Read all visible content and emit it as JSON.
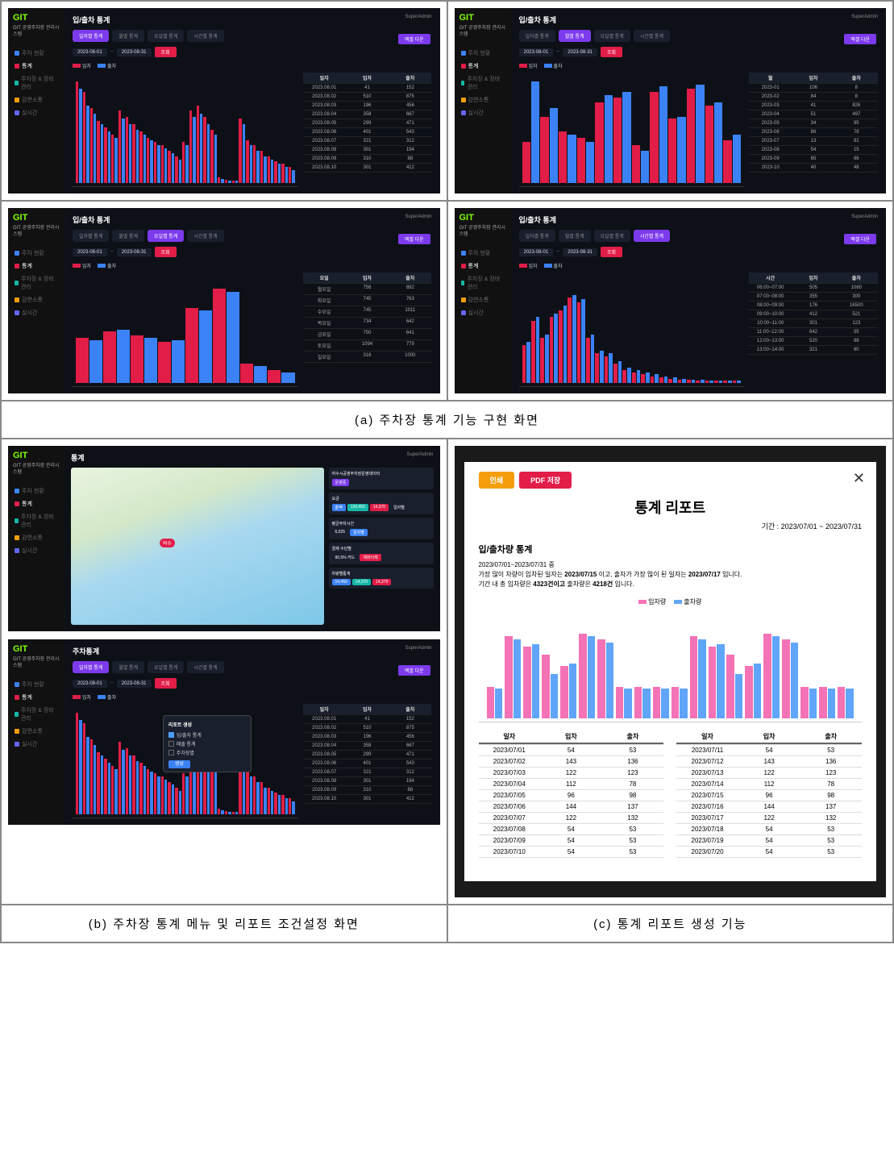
{
  "colors": {
    "bar_in": "#e11d48",
    "bar_out": "#3b82f6",
    "active_tab": "#7c3aed",
    "logo": "#7fff00",
    "bg": "#0d1117"
  },
  "logo": "GIT",
  "system_name": "GIT 공영주차장\n관리시스템",
  "nav": [
    {
      "label": "주차 현황",
      "color": "#3b82f6"
    },
    {
      "label": "통계",
      "color": "#e11d48",
      "active": true
    },
    {
      "label": "주차장 & 장비 관리",
      "color": "#14b8a6"
    },
    {
      "label": "감면소통",
      "color": "#f59e0b"
    },
    {
      "label": "실시간",
      "color": "#6366f1"
    }
  ],
  "header_user": "SuperAdmin",
  "page_title": "입/출차 통계",
  "tabs": [
    "일자별 통계",
    "월별 통계",
    "요일별 통계",
    "시간별 통계"
  ],
  "date_from": "2023-08-01",
  "date_to": "2023-08-31",
  "btn_search": "조회",
  "btn_excel": "엑셀 다운",
  "legend_in": "입차",
  "legend_out": "출차",
  "panels": {
    "a1": {
      "active_tab": 0,
      "chart": {
        "type": "bar",
        "values_in": [
          95,
          85,
          70,
          58,
          52,
          45,
          68,
          62,
          55,
          48,
          42,
          38,
          35,
          30,
          25,
          38,
          68,
          72,
          62,
          50,
          5,
          3,
          2,
          60,
          40,
          35,
          30,
          25,
          20,
          18,
          15
        ],
        "values_out": [
          88,
          72,
          65,
          55,
          48,
          42,
          60,
          55,
          50,
          45,
          40,
          35,
          32,
          28,
          22,
          35,
          62,
          65,
          55,
          45,
          4,
          2,
          2,
          55,
          35,
          30,
          25,
          22,
          18,
          15,
          12
        ]
      },
      "table": {
        "headers": [
          "일자",
          "입차",
          "출차"
        ],
        "rows": [
          [
            "2023.08.01",
            "41",
            "152"
          ],
          [
            "2023.08.02",
            "510",
            "875"
          ],
          [
            "2023.08.03",
            "196",
            "456"
          ],
          [
            "2023.08.04",
            "358",
            "667"
          ],
          [
            "2023.08.05",
            "299",
            "471"
          ],
          [
            "2023.08.06",
            "401",
            "543"
          ],
          [
            "2023.08.07",
            "321",
            "312"
          ],
          [
            "2023.08.08",
            "301",
            "194"
          ],
          [
            "2023.08.09",
            "310",
            "88"
          ],
          [
            "2023.08.10",
            "301",
            "412"
          ]
        ]
      }
    },
    "a2": {
      "active_tab": 1,
      "chart": {
        "type": "bar",
        "values_in": [
          38,
          62,
          48,
          42,
          75,
          80,
          35,
          85,
          60,
          88,
          72,
          40
        ],
        "values_out": [
          95,
          70,
          45,
          38,
          82,
          85,
          30,
          90,
          62,
          92,
          75,
          45
        ]
      },
      "table": {
        "headers": [
          "월",
          "입차",
          "출차"
        ],
        "rows": [
          [
            "2023-01",
            "106",
            "8"
          ],
          [
            "2023-02",
            "84",
            "8"
          ],
          [
            "2023-03",
            "41",
            "826"
          ],
          [
            "2023-04",
            "51",
            "497"
          ],
          [
            "2023-05",
            "34",
            "95"
          ],
          [
            "2023-06",
            "86",
            "78"
          ],
          [
            "2023-07",
            "13",
            "81"
          ],
          [
            "2023-08",
            "54",
            "15"
          ],
          [
            "2023-09",
            "65",
            "86"
          ],
          [
            "2023-10",
            "40",
            "48"
          ]
        ]
      }
    },
    "a3": {
      "active_tab": 2,
      "chart": {
        "type": "bar",
        "values_in": [
          42,
          48,
          44,
          38,
          70,
          88,
          18,
          12
        ],
        "values_out": [
          40,
          50,
          42,
          40,
          68,
          85,
          16,
          10
        ]
      },
      "table": {
        "headers": [
          "요일",
          "입차",
          "출차"
        ],
        "rows": [
          [
            "월요일",
            "756",
            "892"
          ],
          [
            "화요일",
            "745",
            "763"
          ],
          [
            "수요일",
            "745",
            "1011"
          ],
          [
            "목요일",
            "734",
            "642"
          ],
          [
            "금요일",
            "750",
            "641"
          ],
          [
            "토요일",
            "1094",
            "779"
          ],
          [
            "일요일",
            "316",
            "1000"
          ]
        ]
      }
    },
    "a4": {
      "active_tab": 3,
      "chart": {
        "type": "bar",
        "values_in": [
          35,
          58,
          42,
          62,
          68,
          80,
          75,
          42,
          28,
          25,
          18,
          12,
          10,
          8,
          6,
          5,
          4,
          3,
          3,
          2,
          2,
          2,
          2,
          2
        ],
        "values_out": [
          38,
          62,
          45,
          65,
          72,
          82,
          78,
          45,
          30,
          28,
          20,
          14,
          12,
          10,
          8,
          6,
          5,
          4,
          3,
          3,
          2,
          2,
          2,
          2
        ]
      },
      "table": {
        "headers": [
          "시간",
          "입차",
          "출차"
        ],
        "rows": [
          [
            "06:00~07:00",
            "505",
            "1060"
          ],
          [
            "07:00~08:00",
            "355",
            "300"
          ],
          [
            "08:00~09:00",
            "176",
            "16500"
          ],
          [
            "09:00~10:00",
            "412",
            "521"
          ],
          [
            "10:00~11:00",
            "301",
            "123"
          ],
          [
            "11:00~12:00",
            "642",
            "55"
          ],
          [
            "12:00~13:00",
            "520",
            "88"
          ],
          [
            "13:00~14:00",
            "321",
            "60"
          ]
        ]
      }
    }
  },
  "map_panel": {
    "title": "통계",
    "pin_label": "여수",
    "cards": [
      {
        "title": "여수시공영주차장운영데이터",
        "chips": [
          {
            "t": "운영중",
            "c": "#7c3aed"
          }
        ]
      },
      {
        "title": "요금",
        "chips": [
          {
            "t": "총액",
            "c": "#3b82f6"
          },
          {
            "t": "134,450",
            "c": "#14b8a6"
          },
          {
            "t": "14,370",
            "c": "#e11d48"
          },
          {
            "t": "일자별",
            "c": "#1a1f2e"
          }
        ]
      },
      {
        "title": "평균주차시간",
        "chips": [
          {
            "t": "6,025",
            "c": "#1a1f2e"
          },
          {
            "t": "일자별",
            "c": "#3b82f6"
          }
        ]
      },
      {
        "title": "결제 수단별",
        "chips": [
          {
            "t": "90.5% 카드",
            "c": "#1a1f2e"
          },
          {
            "t": "계좌이체",
            "c": "#e11d48"
          }
        ]
      },
      {
        "title": "차량별통계",
        "chips": [
          {
            "t": "14,450",
            "c": "#3b82f6"
          },
          {
            "t": "14,370",
            "c": "#14b8a6"
          },
          {
            "t": "14,370",
            "c": "#e11d48"
          }
        ]
      }
    ]
  },
  "popup_panel": {
    "title": "주차통계",
    "popup_title": "리포트 생성",
    "options": [
      "입/출차 통계",
      "매출 통계",
      "주차장별"
    ],
    "btn": "생성"
  },
  "report": {
    "btn_print": "인쇄",
    "btn_pdf": "PDF 저장",
    "title": "통계 리포트",
    "period": "기간 : 2023/07/01 ~ 2023/07/31",
    "section": "입/출차량 통계",
    "desc_line1": "2023/07/01~2023/07/31 중",
    "desc_line2_a": "가장 많이 차량이 입차된 일자는 ",
    "desc_line2_b": "2023/07/15",
    "desc_line2_c": " 이고, 출차가 가장 많이 된 일자는 ",
    "desc_line2_d": "2023/07/17",
    "desc_line2_e": " 입니다.",
    "desc_line3_a": "기간 내 총 입차량은 ",
    "desc_line3_b": "4323건이고",
    "desc_line3_c": " 출차량은 ",
    "desc_line3_d": "4218건",
    "desc_line3_e": " 입니다.",
    "legend_in": "입차량",
    "legend_out": "출차량",
    "chart": {
      "values_in": [
        30,
        78,
        68,
        60,
        50,
        80,
        75,
        30,
        30,
        30,
        30,
        78,
        68,
        60,
        50,
        80,
        75,
        30,
        30,
        30
      ],
      "values_out": [
        28,
        75,
        70,
        42,
        52,
        78,
        72,
        28,
        28,
        28,
        28,
        75,
        70,
        42,
        52,
        78,
        72,
        28,
        28,
        28
      ]
    },
    "table_headers": [
      "일자",
      "입차",
      "출차"
    ],
    "table_left": [
      [
        "2023/07/01",
        "54",
        "53"
      ],
      [
        "2023/07/02",
        "143",
        "136"
      ],
      [
        "2023/07/03",
        "122",
        "123"
      ],
      [
        "2023/07/04",
        "112",
        "78"
      ],
      [
        "2023/07/05",
        "96",
        "98"
      ],
      [
        "2023/07/06",
        "144",
        "137"
      ],
      [
        "2023/07/07",
        "122",
        "132"
      ],
      [
        "2023/07/08",
        "54",
        "53"
      ],
      [
        "2023/07/09",
        "54",
        "53"
      ],
      [
        "2023/07/10",
        "54",
        "53"
      ]
    ],
    "table_right": [
      [
        "2023/07/11",
        "54",
        "53"
      ],
      [
        "2023/07/12",
        "143",
        "136"
      ],
      [
        "2023/07/13",
        "122",
        "123"
      ],
      [
        "2023/07/14",
        "112",
        "78"
      ],
      [
        "2023/07/15",
        "96",
        "98"
      ],
      [
        "2023/07/16",
        "144",
        "137"
      ],
      [
        "2023/07/17",
        "122",
        "132"
      ],
      [
        "2023/07/18",
        "54",
        "53"
      ],
      [
        "2023/07/19",
        "54",
        "53"
      ],
      [
        "2023/07/20",
        "54",
        "53"
      ]
    ]
  },
  "captions": {
    "a": "(a) 주차장 통계 기능 구현 화면",
    "b": "(b) 주차장 통계 메뉴 및 리포트 조건설정 화면",
    "c": "(c) 통계 리포트 생성 기능"
  }
}
